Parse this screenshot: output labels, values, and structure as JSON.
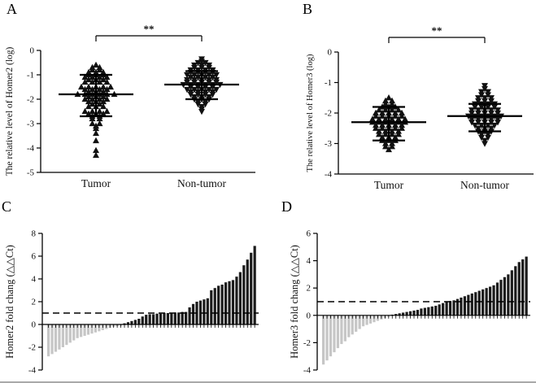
{
  "figure": {
    "background": "#ffffff",
    "border_bottom_color": "#a9a9a9",
    "panels": [
      {
        "label": "A"
      },
      {
        "label": "B"
      },
      {
        "label": "C"
      },
      {
        "label": "D"
      }
    ]
  },
  "colors": {
    "point": "#111111",
    "bar_negative": "#c6c6c6",
    "bar_positive": "#1b1b1b",
    "axis": "#000000"
  },
  "chart_data": [
    {
      "id": "A",
      "type": "scatter",
      "subtype": "column-scatter-dot-plot",
      "title": "",
      "xlabel": "",
      "ylabel": "The relative level of Homer2 (log)",
      "ylim": [
        -5,
        0
      ],
      "yticks": [
        0,
        -1,
        -2,
        -3,
        -4,
        -5
      ],
      "grid": false,
      "legend_position": "none",
      "significance": "**",
      "groups": [
        {
          "label": "Tumor",
          "marker": "triangle-up",
          "mean": -1.8,
          "sd_high": -1.0,
          "sd_low": -2.7,
          "values": [
            -0.6,
            -0.7,
            -0.7,
            -0.8,
            -0.8,
            -0.9,
            -0.9,
            -0.9,
            -1.0,
            -1.0,
            -1.0,
            -1.1,
            -1.1,
            -1.1,
            -1.1,
            -1.2,
            -1.2,
            -1.2,
            -1.3,
            -1.3,
            -1.3,
            -1.3,
            -1.5,
            -1.5,
            -1.5,
            -1.5,
            -1.5,
            -1.6,
            -1.6,
            -1.6,
            -1.6,
            -1.7,
            -1.7,
            -1.7,
            -1.8,
            -1.8,
            -1.8,
            -1.8,
            -1.8,
            -1.8,
            -1.9,
            -1.9,
            -1.9,
            -2.0,
            -2.0,
            -2.0,
            -2.0,
            -2.1,
            -2.1,
            -2.1,
            -2.2,
            -2.2,
            -2.3,
            -2.3,
            -2.3,
            -2.5,
            -2.5,
            -2.5,
            -2.5,
            -2.6,
            -2.6,
            -2.6,
            -2.7,
            -2.7,
            -2.8,
            -2.8,
            -3.0,
            -3.0,
            -3.1,
            -3.2,
            -3.4,
            -3.7,
            -4.1,
            -4.3
          ]
        },
        {
          "label": "Non-tumor",
          "marker": "triangle-down",
          "mean": -1.4,
          "sd_high": -0.85,
          "sd_low": -2.0,
          "values": [
            -0.35,
            -0.45,
            -0.5,
            -0.5,
            -0.6,
            -0.6,
            -0.6,
            -0.7,
            -0.7,
            -0.7,
            -0.8,
            -0.8,
            -0.8,
            -0.8,
            -0.9,
            -0.9,
            -0.9,
            -0.9,
            -1.0,
            -1.0,
            -1.0,
            -1.0,
            -1.0,
            -1.1,
            -1.1,
            -1.1,
            -1.1,
            -1.2,
            -1.2,
            -1.2,
            -1.2,
            -1.2,
            -1.3,
            -1.3,
            -1.3,
            -1.3,
            -1.3,
            -1.4,
            -1.4,
            -1.4,
            -1.4,
            -1.4,
            -1.4,
            -1.5,
            -1.5,
            -1.5,
            -1.5,
            -1.6,
            -1.6,
            -1.6,
            -1.6,
            -1.6,
            -1.7,
            -1.7,
            -1.7,
            -1.7,
            -1.8,
            -1.8,
            -1.8,
            -1.8,
            -1.9,
            -1.9,
            -1.9,
            -2.0,
            -2.0,
            -2.0,
            -2.1,
            -2.1,
            -2.2,
            -2.2,
            -2.3,
            -2.4,
            -2.5
          ]
        }
      ]
    },
    {
      "id": "B",
      "type": "scatter",
      "subtype": "column-scatter-dot-plot",
      "title": "",
      "xlabel": "",
      "ylabel": "The relative level of Homer3 (log)",
      "ylim": [
        -4,
        0
      ],
      "yticks": [
        0,
        -1,
        -2,
        -3,
        -4
      ],
      "grid": false,
      "legend_position": "none",
      "significance": "**",
      "groups": [
        {
          "label": "Tumor",
          "marker": "triangle-up",
          "mean": -2.3,
          "sd_high": -1.8,
          "sd_low": -2.9,
          "values": [
            -1.5,
            -1.6,
            -1.6,
            -1.7,
            -1.7,
            -1.8,
            -1.8,
            -1.8,
            -1.9,
            -1.9,
            -1.9,
            -1.9,
            -2.0,
            -2.0,
            -2.0,
            -2.0,
            -2.0,
            -2.1,
            -2.1,
            -2.1,
            -2.1,
            -2.1,
            -2.2,
            -2.2,
            -2.2,
            -2.2,
            -2.2,
            -2.2,
            -2.3,
            -2.3,
            -2.3,
            -2.3,
            -2.3,
            -2.3,
            -2.4,
            -2.4,
            -2.4,
            -2.4,
            -2.4,
            -2.5,
            -2.5,
            -2.5,
            -2.5,
            -2.5,
            -2.6,
            -2.6,
            -2.6,
            -2.6,
            -2.7,
            -2.7,
            -2.7,
            -2.7,
            -2.8,
            -2.8,
            -2.8,
            -2.9,
            -2.9,
            -2.9,
            -3.0,
            -3.0,
            -3.1,
            -3.1,
            -3.2
          ]
        },
        {
          "label": "Non-tumor",
          "marker": "triangle-down",
          "mean": -2.1,
          "sd_high": -1.7,
          "sd_low": -2.6,
          "values": [
            -1.1,
            -1.2,
            -1.3,
            -1.3,
            -1.4,
            -1.4,
            -1.5,
            -1.5,
            -1.5,
            -1.6,
            -1.6,
            -1.6,
            -1.7,
            -1.7,
            -1.7,
            -1.7,
            -1.8,
            -1.8,
            -1.8,
            -1.8,
            -1.9,
            -1.9,
            -1.9,
            -1.9,
            -1.9,
            -2.0,
            -2.0,
            -2.0,
            -2.0,
            -2.0,
            -2.1,
            -2.1,
            -2.1,
            -2.1,
            -2.1,
            -2.1,
            -2.2,
            -2.2,
            -2.2,
            -2.2,
            -2.2,
            -2.3,
            -2.3,
            -2.3,
            -2.3,
            -2.3,
            -2.4,
            -2.4,
            -2.4,
            -2.4,
            -2.5,
            -2.5,
            -2.5,
            -2.6,
            -2.6,
            -2.6,
            -2.7,
            -2.7,
            -2.8,
            -2.8,
            -2.9,
            -3.0
          ]
        }
      ]
    },
    {
      "id": "C",
      "type": "bar",
      "subtype": "waterfall",
      "title": "",
      "xlabel": "",
      "ylabel": "Homer2 fold chang (△△Ct)",
      "ylim": [
        -4,
        8
      ],
      "yticks": [
        8,
        6,
        4,
        2,
        0,
        -2,
        -4
      ],
      "threshold": 1,
      "grid": false,
      "bar_color_rule": "negative=gray, positive=black",
      "values": [
        -2.8,
        -2.6,
        -2.4,
        -2.2,
        -2.0,
        -1.8,
        -1.6,
        -1.4,
        -1.2,
        -1.1,
        -1.0,
        -0.9,
        -0.8,
        -0.7,
        -0.6,
        -0.5,
        -0.4,
        -0.3,
        -0.2,
        -0.15,
        -0.1,
        0.1,
        0.2,
        0.3,
        0.4,
        0.5,
        0.7,
        0.85,
        0.9,
        0.9,
        0.95,
        0.95,
        1.0,
        1.0,
        1.0,
        1.05,
        1.05,
        1.1,
        1.1,
        1.5,
        1.8,
        2.0,
        2.1,
        2.2,
        2.3,
        3.0,
        3.2,
        3.4,
        3.5,
        3.7,
        3.8,
        3.9,
        4.2,
        4.6,
        5.2,
        5.7,
        6.3,
        6.9
      ]
    },
    {
      "id": "D",
      "type": "bar",
      "subtype": "waterfall",
      "title": "",
      "xlabel": "",
      "ylabel": "Homer3 fold chang (△△Ct)",
      "ylim": [
        -4,
        6
      ],
      "yticks": [
        6,
        4,
        2,
        0,
        -2,
        -4
      ],
      "threshold": 1,
      "grid": false,
      "bar_color_rule": "negative=gray, positive=black",
      "values": [
        -3.6,
        -3.3,
        -3.0,
        -2.7,
        -2.4,
        -2.1,
        -1.9,
        -1.6,
        -1.4,
        -1.2,
        -1.0,
        -0.8,
        -0.7,
        -0.6,
        -0.5,
        -0.4,
        -0.3,
        -0.2,
        -0.1,
        0.05,
        0.1,
        0.15,
        0.2,
        0.25,
        0.3,
        0.35,
        0.4,
        0.5,
        0.55,
        0.6,
        0.65,
        0.7,
        0.8,
        0.9,
        1.0,
        1.05,
        1.1,
        1.2,
        1.3,
        1.4,
        1.5,
        1.6,
        1.7,
        1.8,
        1.9,
        2.0,
        2.1,
        2.2,
        2.4,
        2.6,
        2.8,
        3.0,
        3.3,
        3.6,
        3.9,
        4.1,
        4.3
      ]
    }
  ]
}
